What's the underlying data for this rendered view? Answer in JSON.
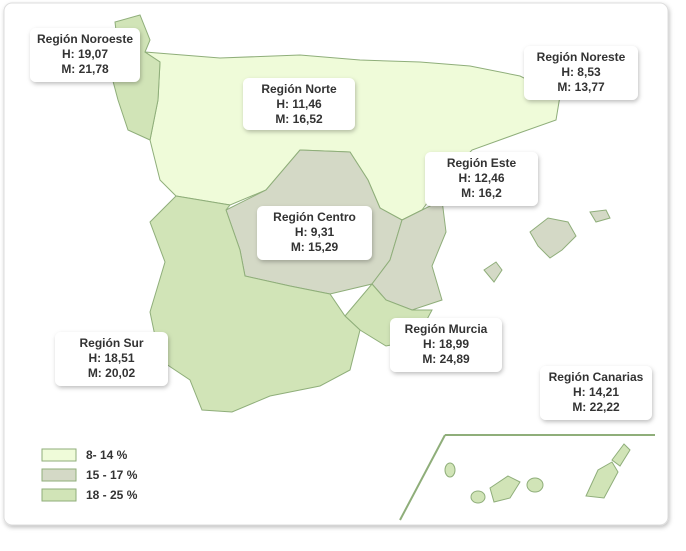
{
  "regions": [
    {
      "name": "Región Noroeste",
      "h": "H: 19,07",
      "m": "M: 21,78"
    },
    {
      "name": "Región Norte",
      "h": "H: 11,46",
      "m": "M: 16,52"
    },
    {
      "name": "Región Noreste",
      "h": "H: 8,53",
      "m": "M: 13,77"
    },
    {
      "name": "Región Este",
      "h": "H: 12,46",
      "m": "M: 16,2"
    },
    {
      "name": "Región Centro",
      "h": "H: 9,31",
      "m": "M: 15,29"
    },
    {
      "name": "Región Sur",
      "h": "H: 18,51",
      "m": "M: 20,02"
    },
    {
      "name": "Región Murcia",
      "h": "H: 18,99",
      "m": "M: 24,89"
    },
    {
      "name": "Región Canarias",
      "h": "H: 14,21",
      "m": "M: 22,22"
    }
  ],
  "legend": [
    "8- 14 %",
    "15 - 17 %",
    "18 - 25 %"
  ]
}
